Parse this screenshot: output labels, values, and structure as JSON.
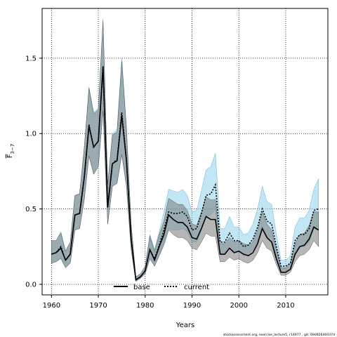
{
  "chart_data": {
    "type": "line",
    "xlabel": "Years",
    "ylabel_main": "F",
    "ylabel_sub": "3−7",
    "xlim": [
      1958,
      2019
    ],
    "ylim": [
      -0.07,
      1.83
    ],
    "xticks": [
      1960,
      1970,
      1980,
      1990,
      2000,
      2010
    ],
    "yticks": [
      0.0,
      0.5,
      1.0,
      1.5
    ],
    "xtick_labels": [
      "1960",
      "1970",
      "1980",
      "1990",
      "2000",
      "2010"
    ],
    "ytick_labels": [
      "0.0",
      "0.5",
      "1.0",
      "1.5"
    ],
    "grid": true,
    "legend_position": "bottom-center",
    "footer": "stockassessment.org, exercise_lecture5, r14977 , git: 69d926d0437d",
    "x": [
      1960,
      1961,
      1962,
      1963,
      1964,
      1965,
      1966,
      1967,
      1968,
      1969,
      1970,
      1971,
      1972,
      1973,
      1974,
      1975,
      1976,
      1977,
      1978,
      1979,
      1980,
      1981,
      1982,
      1983,
      1984,
      1985,
      1986,
      1987,
      1988,
      1989,
      1990,
      1991,
      1992,
      1993,
      1994,
      1995,
      1996,
      1997,
      1998,
      1999,
      2000,
      2001,
      2002,
      2003,
      2004,
      2005,
      2006,
      2007,
      2008,
      2009,
      2010,
      2011,
      2012,
      2013,
      2014,
      2015,
      2016,
      2017
    ],
    "series": [
      {
        "name": "base",
        "color": "#000000",
        "line_style": "solid",
        "band_color": "#7a7a7a",
        "values": [
          0.2,
          0.21,
          0.24,
          0.16,
          0.2,
          0.46,
          0.47,
          0.71,
          1.05,
          0.91,
          0.95,
          1.44,
          0.51,
          0.8,
          0.82,
          1.12,
          0.82,
          0.3,
          0.03,
          0.05,
          0.09,
          0.23,
          0.16,
          0.25,
          0.33,
          0.46,
          0.43,
          0.41,
          0.41,
          0.38,
          0.31,
          0.3,
          0.37,
          0.45,
          0.43,
          0.43,
          0.2,
          0.2,
          0.24,
          0.21,
          0.22,
          0.2,
          0.19,
          0.21,
          0.27,
          0.37,
          0.31,
          0.28,
          0.17,
          0.08,
          0.08,
          0.1,
          0.2,
          0.25,
          0.26,
          0.3,
          0.38,
          0.36
        ],
        "lower": [
          0.14,
          0.15,
          0.17,
          0.11,
          0.14,
          0.36,
          0.37,
          0.56,
          0.85,
          0.73,
          0.78,
          1.15,
          0.4,
          0.65,
          0.67,
          0.86,
          0.65,
          0.23,
          0.02,
          0.04,
          0.07,
          0.17,
          0.12,
          0.19,
          0.26,
          0.36,
          0.33,
          0.31,
          0.31,
          0.29,
          0.24,
          0.23,
          0.28,
          0.34,
          0.32,
          0.32,
          0.15,
          0.15,
          0.18,
          0.16,
          0.17,
          0.15,
          0.14,
          0.16,
          0.21,
          0.29,
          0.24,
          0.22,
          0.13,
          0.06,
          0.06,
          0.08,
          0.15,
          0.19,
          0.2,
          0.23,
          0.29,
          0.25
        ],
        "upper": [
          0.29,
          0.29,
          0.34,
          0.22,
          0.28,
          0.59,
          0.6,
          0.91,
          1.3,
          1.13,
          1.16,
          1.75,
          0.66,
          0.99,
          1.01,
          1.48,
          1.03,
          0.4,
          0.05,
          0.07,
          0.12,
          0.32,
          0.22,
          0.33,
          0.42,
          0.57,
          0.55,
          0.53,
          0.53,
          0.49,
          0.4,
          0.39,
          0.48,
          0.58,
          0.56,
          0.56,
          0.27,
          0.27,
          0.31,
          0.28,
          0.29,
          0.27,
          0.26,
          0.28,
          0.36,
          0.48,
          0.4,
          0.36,
          0.23,
          0.11,
          0.11,
          0.14,
          0.27,
          0.33,
          0.34,
          0.39,
          0.48,
          0.48
        ]
      },
      {
        "name": "current",
        "color": "#000000",
        "line_style": "dotted",
        "band_color": "#87ceeb",
        "values": [
          0.2,
          0.21,
          0.25,
          0.16,
          0.2,
          0.46,
          0.47,
          0.71,
          1.06,
          0.91,
          0.95,
          1.45,
          0.51,
          0.8,
          0.83,
          1.14,
          0.83,
          0.31,
          0.03,
          0.05,
          0.09,
          0.23,
          0.17,
          0.26,
          0.36,
          0.48,
          0.47,
          0.47,
          0.48,
          0.45,
          0.36,
          0.37,
          0.47,
          0.59,
          0.6,
          0.66,
          0.28,
          0.28,
          0.34,
          0.29,
          0.29,
          0.25,
          0.26,
          0.3,
          0.38,
          0.5,
          0.42,
          0.4,
          0.25,
          0.12,
          0.12,
          0.14,
          0.29,
          0.33,
          0.33,
          0.37,
          0.49,
          0.5
        ],
        "lower": [
          0.14,
          0.15,
          0.18,
          0.11,
          0.15,
          0.36,
          0.37,
          0.56,
          0.86,
          0.73,
          0.78,
          1.16,
          0.4,
          0.65,
          0.67,
          0.87,
          0.66,
          0.24,
          0.02,
          0.04,
          0.07,
          0.17,
          0.12,
          0.19,
          0.28,
          0.37,
          0.36,
          0.36,
          0.37,
          0.35,
          0.28,
          0.28,
          0.36,
          0.45,
          0.46,
          0.5,
          0.21,
          0.21,
          0.26,
          0.22,
          0.22,
          0.19,
          0.2,
          0.23,
          0.29,
          0.39,
          0.32,
          0.3,
          0.19,
          0.09,
          0.09,
          0.11,
          0.22,
          0.25,
          0.25,
          0.28,
          0.37,
          0.36
        ],
        "upper": [
          0.29,
          0.29,
          0.35,
          0.22,
          0.28,
          0.59,
          0.6,
          0.91,
          1.31,
          1.14,
          1.17,
          1.76,
          0.66,
          1.0,
          1.03,
          1.5,
          1.05,
          0.4,
          0.05,
          0.07,
          0.12,
          0.33,
          0.23,
          0.35,
          0.48,
          0.63,
          0.62,
          0.61,
          0.63,
          0.59,
          0.48,
          0.49,
          0.62,
          0.76,
          0.78,
          0.87,
          0.37,
          0.37,
          0.45,
          0.38,
          0.38,
          0.33,
          0.34,
          0.4,
          0.5,
          0.65,
          0.55,
          0.53,
          0.33,
          0.16,
          0.16,
          0.19,
          0.38,
          0.44,
          0.44,
          0.49,
          0.63,
          0.7
        ]
      }
    ]
  }
}
